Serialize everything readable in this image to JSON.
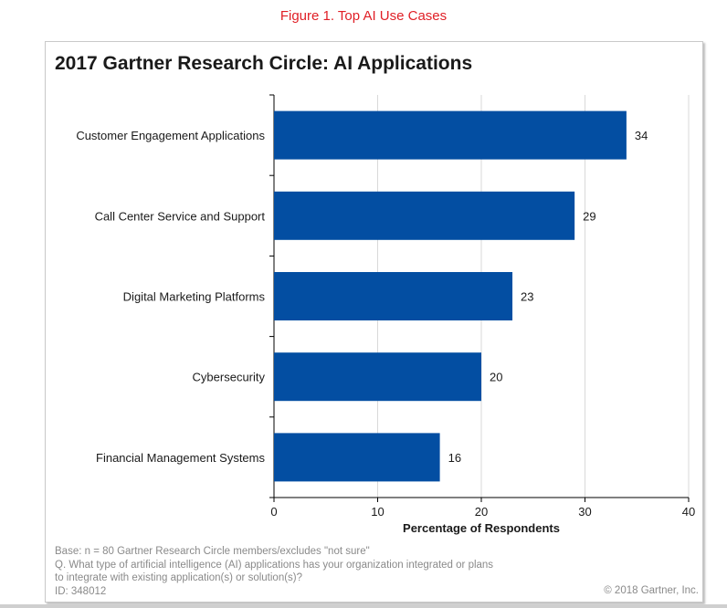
{
  "figure_title": "Figure 1. Top AI Use Cases",
  "colors": {
    "bar": "#034ea2",
    "figure_title": "#e01f26",
    "grid": "#d9d9d9"
  },
  "chart_data": {
    "type": "bar",
    "orientation": "horizontal",
    "title": "2017 Gartner Research Circle: AI Applications",
    "categories": [
      "Customer Engagement Applications",
      "Call Center Service and Support",
      "Digital Marketing Platforms",
      "Cybersecurity",
      "Financial Management Systems"
    ],
    "values": [
      34,
      29,
      23,
      20,
      16
    ],
    "xlabel": "Percentage of Respondents",
    "ylabel": "",
    "xlim": [
      0,
      40
    ],
    "xticks": [
      0,
      10,
      20,
      30,
      40
    ],
    "grid": true
  },
  "footnote": {
    "base": "Base: n = 80 Gartner Research Circle members/excludes  \"not sure\"",
    "question_line1": "Q.  What type of artificial intelligence (AI) applications has your organization integrated or plans",
    "question_line2": "to integrate with existing application(s) or solution(s)?",
    "id": "ID: 348012",
    "copyright": "© 2018 Gartner, Inc."
  }
}
